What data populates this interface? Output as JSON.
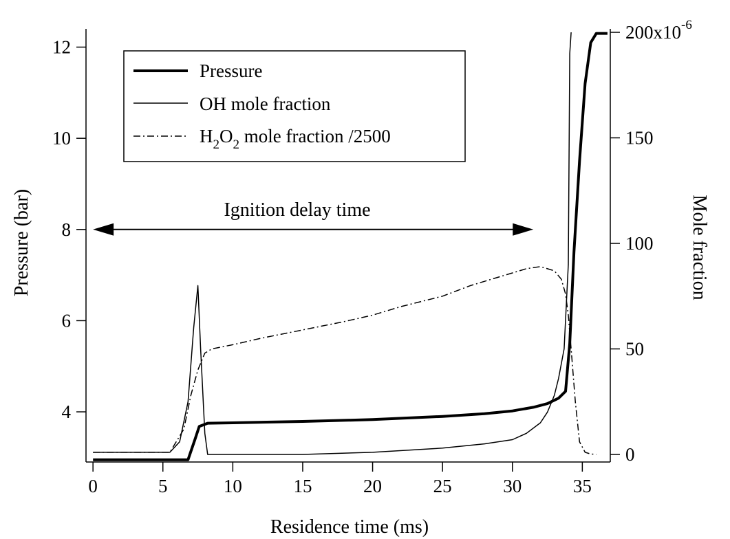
{
  "chart_data": {
    "type": "line",
    "xlabel": "Residence time (ms)",
    "ylabel_left": "Pressure (bar)",
    "ylabel_right": "Mole fraction",
    "xlim": [
      -0.5,
      37
    ],
    "ylim_left": [
      2.9,
      12.4
    ],
    "ylim_right": [
      0,
      0.0002
    ],
    "x_ticks": [
      "0",
      "5",
      "10",
      "15",
      "20",
      "25",
      "30",
      "35"
    ],
    "x_tick_values": [
      0,
      5,
      10,
      15,
      20,
      25,
      30,
      35
    ],
    "y_left_ticks": [
      "4",
      "6",
      "8",
      "10",
      "12"
    ],
    "y_left_tick_values": [
      4,
      6,
      8,
      10,
      12
    ],
    "y_right_ticks": [
      "0",
      "50",
      "100",
      "150",
      "200x10"
    ],
    "y_right_tick_exponent": "-6",
    "y_right_tick_values": [
      0,
      5e-05,
      0.0001,
      0.00015,
      0.0002
    ],
    "grid": false,
    "legend_placement": "top-left",
    "legend": {
      "pressure": "Pressure",
      "oh": "OH mole fraction",
      "h2o2_prefix": "H",
      "h2o2_sub1": "2",
      "h2o2_mid": "O",
      "h2o2_sub2": "2",
      "h2o2_suffix": " mole fraction /2500"
    },
    "annotation": {
      "text": "Ignition delay time",
      "x_start": 0,
      "x_end": 31.5,
      "y": 8
    },
    "series": [
      {
        "name": "Pressure",
        "axis": "left",
        "style": "thick",
        "x": [
          0,
          6.8,
          7.3,
          7.6,
          8.2,
          10,
          15,
          20,
          25,
          28,
          30,
          31.5,
          32.5,
          33.3,
          33.8,
          34.1,
          34.4,
          34.8,
          35.2,
          35.6,
          36,
          36.8
        ],
        "y": [
          2.95,
          2.95,
          3.4,
          3.68,
          3.75,
          3.76,
          3.79,
          3.83,
          3.9,
          3.96,
          4.02,
          4.1,
          4.18,
          4.3,
          4.45,
          5.5,
          7.5,
          9.5,
          11.2,
          12.1,
          12.3,
          12.3
        ]
      },
      {
        "name": "OH mole fraction",
        "axis": "right",
        "style": "thin",
        "x": [
          0,
          5.5,
          6.2,
          6.8,
          7.2,
          7.5,
          7.7,
          8.0,
          8.2,
          10,
          15,
          20,
          25,
          28,
          30,
          31,
          32,
          32.5,
          33,
          33.3,
          33.7,
          34.0,
          34.1,
          34.2
        ],
        "y": [
          1e-06,
          1e-06,
          6e-06,
          2.5e-05,
          6e-05,
          8e-05,
          5e-05,
          1e-05,
          0.0,
          0.0,
          0.0,
          1e-06,
          3e-06,
          5e-06,
          7e-06,
          1e-05,
          1.5e-05,
          2e-05,
          2.8e-05,
          3.6e-05,
          5e-05,
          9e-05,
          0.00019,
          0.0002
        ]
      },
      {
        "name": "H2O2 mole fraction /2500",
        "axis": "right",
        "style": "dashdot",
        "x": [
          0,
          5.5,
          6.5,
          7.0,
          7.5,
          8.0,
          8.5,
          10,
          12,
          15,
          18,
          20,
          22,
          25,
          27,
          29,
          30,
          31,
          32,
          33,
          33.5,
          33.8,
          34.0,
          34.2,
          34.5,
          34.8,
          35.2,
          35.6,
          36.0
        ],
        "y": [
          1e-06,
          1e-06,
          1.2e-05,
          2.8e-05,
          4e-05,
          4.8e-05,
          5e-05,
          5.2e-05,
          5.5e-05,
          5.9e-05,
          6.3e-05,
          6.6e-05,
          7e-05,
          7.5e-05,
          8e-05,
          8.4e-05,
          8.6e-05,
          8.8e-05,
          8.9e-05,
          8.7e-05,
          8.3e-05,
          7.6e-05,
          6.6e-05,
          5e-05,
          2.5e-05,
          6e-06,
          1e-06,
          2e-07,
          0.0
        ]
      }
    ]
  }
}
